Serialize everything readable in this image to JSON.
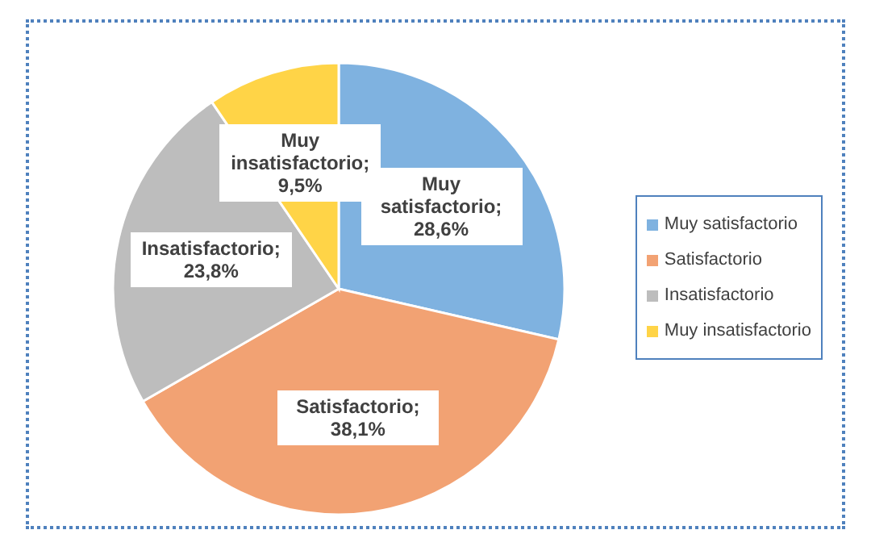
{
  "chart_data": {
    "type": "pie",
    "categories": [
      "Muy satisfactorio",
      "Satisfactorio",
      "Insatisfactorio",
      "Muy insatisfactorio"
    ],
    "values": [
      28.6,
      38.1,
      23.8,
      9.5
    ],
    "colors": [
      "#7fb2e0",
      "#f2a273",
      "#bdbdbd",
      "#ffd447"
    ],
    "value_labels": [
      "Muy satisfactorio; 28,6%",
      "Satisfactorio; 38,1%",
      "Insatisfactorio; 23,8%",
      "Muy insatisfactorio; 9,5%"
    ],
    "legend": "right"
  }
}
